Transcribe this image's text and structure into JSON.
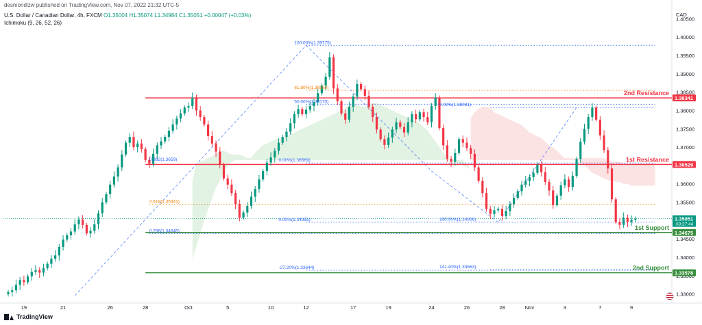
{
  "header": {
    "publisher": "desmondlzw published on TradingView.com, Nov 07, 2022 21:32 UTC-5",
    "symbol": "U.S. Dollar / Canadian Dollar, 4h, FXCM",
    "ohlc": "O1.35004 H1.35074 L1.34984 C1.35051 +0.00047 (+0.03%)",
    "indicator": "Ichimoku (9, 26, 52, 26)"
  },
  "footer": {
    "brand": "TradingView"
  },
  "chart_data": {
    "type": "candlestick",
    "currency": "CAD",
    "ylim": [
      1.3275,
      1.4075
    ],
    "yticks": [
      1.33,
      1.335,
      1.34,
      1.345,
      1.35,
      1.355,
      1.36,
      1.365,
      1.37,
      1.375,
      1.38,
      1.385,
      1.39,
      1.395,
      1.4,
      1.405
    ],
    "x_ticks": [
      {
        "i": 4,
        "label": "19"
      },
      {
        "i": 14,
        "label": "21"
      },
      {
        "i": 26,
        "label": "26"
      },
      {
        "i": 35,
        "label": "28"
      },
      {
        "i": 46,
        "label": "Oct"
      },
      {
        "i": 56,
        "label": "5"
      },
      {
        "i": 67,
        "label": "10"
      },
      {
        "i": 76,
        "label": "12"
      },
      {
        "i": 88,
        "label": "17"
      },
      {
        "i": 97,
        "label": "19"
      },
      {
        "i": 108,
        "label": "24"
      },
      {
        "i": 117,
        "label": "26"
      },
      {
        "i": 126,
        "label": "28"
      },
      {
        "i": 133,
        "label": "Nov"
      },
      {
        "i": 142,
        "label": "3"
      },
      {
        "i": 151,
        "label": "7"
      },
      {
        "i": 159,
        "label": "9"
      }
    ],
    "closes": [
      1.3305,
      1.331,
      1.3325,
      1.3338,
      1.3332,
      1.3348,
      1.336,
      1.3365,
      1.3358,
      1.337,
      1.3382,
      1.3396,
      1.3405,
      1.3428,
      1.3448,
      1.346,
      1.347,
      1.349,
      1.3503,
      1.3488,
      1.3465,
      1.3472,
      1.349,
      1.352,
      1.355,
      1.3572,
      1.3598,
      1.362,
      1.3645,
      1.368,
      1.3712,
      1.3728,
      1.37,
      1.371,
      1.3695,
      1.3665,
      1.3655,
      1.3682,
      1.3705,
      1.3716,
      1.3728,
      1.3745,
      1.3762,
      1.3778,
      1.3792,
      1.3808,
      1.3812,
      1.3835,
      1.38,
      1.3782,
      1.3762,
      1.373,
      1.371,
      1.3688,
      1.3652,
      1.3615,
      1.3598,
      1.3575,
      1.3545,
      1.3508,
      1.3522,
      1.354,
      1.3565,
      1.3586,
      1.3612,
      1.3635,
      1.3658,
      1.3672,
      1.369,
      1.3712,
      1.3728,
      1.3742,
      1.3765,
      1.379,
      1.3804,
      1.379,
      1.3802,
      1.3812,
      1.3823,
      1.3847,
      1.3868,
      1.3892,
      1.3945,
      1.386,
      1.3825,
      1.3792,
      1.3775,
      1.381,
      1.3838,
      1.3872,
      1.3858,
      1.384,
      1.381,
      1.3782,
      1.3748,
      1.3722,
      1.3706,
      1.3726,
      1.3748,
      1.3768,
      1.3755,
      1.374,
      1.3768,
      1.379,
      1.3776,
      1.3795,
      1.3782,
      1.3768,
      1.3812,
      1.3835,
      1.3752,
      1.3705,
      1.3668,
      1.366,
      1.3684,
      1.3722,
      1.3712,
      1.3698,
      1.3682,
      1.3645,
      1.3608,
      1.3575,
      1.3532,
      1.3518,
      1.3528,
      1.3532,
      1.3512,
      1.3526,
      1.3545,
      1.3562,
      1.358,
      1.3598,
      1.3608,
      1.3618,
      1.363,
      1.3652,
      1.3632,
      1.3605,
      1.3582,
      1.3542,
      1.3568,
      1.3596,
      1.3612,
      1.3592,
      1.3622,
      1.3668,
      1.3715,
      1.375,
      1.3782,
      1.3808,
      1.3775,
      1.3732,
      1.3692,
      1.3642,
      1.3558,
      1.3496,
      1.3488,
      1.3508,
      1.3496,
      1.3502,
      1.3505
    ],
    "ichimoku_cloud": [
      {
        "start": 47,
        "end": 62,
        "top": [
          1.361,
          1.3655,
          1.366,
          1.3665,
          1.367,
          1.3675,
          1.368,
          1.369,
          1.369,
          1.3685,
          1.368,
          1.368,
          1.368,
          1.3675,
          1.367,
          1.367
        ],
        "bottom": [
          1.3395,
          1.343,
          1.3465,
          1.35,
          1.353,
          1.356,
          1.359,
          1.361,
          1.363,
          1.365,
          1.366,
          1.3665,
          1.3665,
          1.3665,
          1.3665,
          1.3665
        ],
        "color": "#4caf50"
      },
      {
        "start": 62,
        "end": 118,
        "top": [
          1.367,
          1.3685,
          1.3695,
          1.3705,
          1.371,
          1.3715,
          1.372,
          1.3725,
          1.3725,
          1.373,
          1.3735,
          1.374,
          1.3745,
          1.375,
          1.3755,
          1.376,
          1.3765,
          1.377,
          1.3775,
          1.378,
          1.3785,
          1.379,
          1.3795,
          1.38,
          1.3805,
          1.3815,
          1.382,
          1.3815,
          1.381,
          1.381,
          1.3815,
          1.382,
          1.382,
          1.3815,
          1.381,
          1.3805,
          1.38,
          1.3795,
          1.379,
          1.3785,
          1.378,
          1.3775,
          1.377,
          1.3765,
          1.3755,
          1.3745,
          1.373,
          1.3715,
          1.37,
          1.3685,
          1.367,
          1.3665,
          1.366,
          1.3655,
          1.365,
          1.3645,
          1.364
        ],
        "bottom": [
          1.3665,
          1.3665,
          1.3665,
          1.3665,
          1.3665,
          1.3665,
          1.3665,
          1.3665,
          1.3665,
          1.3665,
          1.3665,
          1.3665,
          1.3665,
          1.3665,
          1.3665,
          1.3665,
          1.3665,
          1.3665,
          1.3665,
          1.3665,
          1.3665,
          1.3665,
          1.3665,
          1.3665,
          1.3665,
          1.3665,
          1.3665,
          1.3665,
          1.3665,
          1.3665,
          1.3665,
          1.3665,
          1.3665,
          1.3665,
          1.3665,
          1.3665,
          1.3665,
          1.3665,
          1.3665,
          1.3665,
          1.3665,
          1.3665,
          1.3665,
          1.3665,
          1.3665,
          1.3665,
          1.3665,
          1.3665,
          1.3665,
          1.3665,
          1.3665,
          1.3665,
          1.3665,
          1.3665,
          1.3665,
          1.3655,
          1.364
        ],
        "color": "#4caf50"
      },
      {
        "start": 118,
        "end": 165,
        "top": [
          1.378,
          1.3795,
          1.3805,
          1.381,
          1.381,
          1.3805,
          1.3795,
          1.379,
          1.3785,
          1.378,
          1.3775,
          1.377,
          1.3765,
          1.376,
          1.375,
          1.374,
          1.3735,
          1.373,
          1.3725,
          1.3715,
          1.3705,
          1.37,
          1.369,
          1.368,
          1.367,
          1.367,
          1.367,
          1.367,
          1.367,
          1.367,
          1.367,
          1.367,
          1.367,
          1.367,
          1.367,
          1.3665,
          1.366,
          1.366,
          1.366,
          1.3655,
          1.3655,
          1.3655,
          1.3655,
          1.3655,
          1.3655,
          1.3655,
          1.3655,
          1.3655
        ],
        "bottom": [
          1.3665,
          1.3665,
          1.3665,
          1.3665,
          1.3665,
          1.3665,
          1.3665,
          1.3665,
          1.3665,
          1.3665,
          1.3665,
          1.3665,
          1.3665,
          1.3665,
          1.3665,
          1.3665,
          1.3665,
          1.3665,
          1.3665,
          1.3665,
          1.3665,
          1.3665,
          1.3665,
          1.3665,
          1.3665,
          1.3665,
          1.3665,
          1.3665,
          1.366,
          1.365,
          1.364,
          1.363,
          1.3625,
          1.362,
          1.3615,
          1.361,
          1.361,
          1.3605,
          1.3605,
          1.36,
          1.36,
          1.3595,
          1.3595,
          1.3595,
          1.3595,
          1.3595,
          1.3595,
          1.3595
        ],
        "color": "#ef5350"
      }
    ],
    "horizontal_levels": [
      {
        "price": 1.38341,
        "label": "2nd Resistance",
        "color": "#f23645",
        "width": 1.5
      },
      {
        "price": 1.36529,
        "label": "1st Resistance",
        "color": "#f23645",
        "width": 1.5
      },
      {
        "price": 1.34675,
        "label": "1st Support",
        "color": "#388e3c",
        "width": 1.5
      },
      {
        "price": 1.33578,
        "label": "2nd Support",
        "color": "#388e3c",
        "width": 1.5
      }
    ],
    "price_tags": [
      {
        "price": 1.38341,
        "text": "1.38341",
        "color": "#f23645"
      },
      {
        "price": 1.36529,
        "text": "1.36529",
        "color": "#f23645"
      },
      {
        "price": 1.35051,
        "text": "1.35051",
        "sub": "03:27:44",
        "color": "#089981"
      },
      {
        "price": 1.34675,
        "text": "1.34675",
        "color": "#388e3c"
      },
      {
        "price": 1.33578,
        "text": "1.33578",
        "color": "#388e3c"
      }
    ],
    "fib_labels": [
      {
        "i": 73,
        "price": 1.39775,
        "text": "100.00%(1.39775)",
        "color": "#2962ff"
      },
      {
        "i": 73,
        "price": 1.3855,
        "text": "61.80%(1.38550)",
        "color": "#f57c00"
      },
      {
        "i": 73,
        "price": 1.3817,
        "text": "50.00%(1.38170)",
        "color": "#2962ff"
      },
      {
        "i": 36,
        "price": 1.3659,
        "text": "0.382(1.3659)",
        "color": "#2962ff"
      },
      {
        "i": 36,
        "price": 1.35441,
        "text": "0.618(1.35441)",
        "color": "#f57c00"
      },
      {
        "i": 36,
        "price": 1.34645,
        "text": "0.786(1.34645)",
        "color": "#2962ff"
      },
      {
        "i": 69,
        "price": 1.36569,
        "text": "0.00%(1.36569)",
        "color": "#2962ff"
      },
      {
        "i": 69,
        "price": 1.34955,
        "text": "0.00%(1.34955)",
        "color": "#2962ff"
      },
      {
        "i": 69,
        "price": 1.33644,
        "text": "-27.20%(1.33644)",
        "color": "#2962ff"
      },
      {
        "i": 110,
        "price": 1.38081,
        "text": "0.00%(1.38081)",
        "color": "#2962ff"
      },
      {
        "i": 110,
        "price": 1.34956,
        "text": "100.00%(1.34956)",
        "color": "#2962ff"
      },
      {
        "i": 110,
        "price": 1.33663,
        "text": "141.40%(1.33663)",
        "color": "#2962ff"
      }
    ],
    "fib_lines": [
      {
        "price": 1.39775,
        "from": 76,
        "to": 165,
        "color": "#2962ff"
      },
      {
        "price": 1.3855,
        "from": 76,
        "to": 165,
        "color": "#f57c00"
      },
      {
        "price": 1.3817,
        "from": 76,
        "to": 165,
        "color": "#2962ff"
      },
      {
        "price": 1.38081,
        "from": 123,
        "to": 165,
        "color": "#2962ff"
      },
      {
        "price": 1.36569,
        "from": 76,
        "to": 165,
        "color": "#2962ff"
      },
      {
        "price": 1.35441,
        "from": 36,
        "to": 165,
        "color": "#f57c00"
      },
      {
        "price": 1.34955,
        "from": 76,
        "to": 165,
        "color": "#2962ff"
      },
      {
        "price": 1.34645,
        "from": 36,
        "to": 165,
        "color": "#2962ff"
      },
      {
        "price": 1.33644,
        "from": 76,
        "to": 165,
        "color": "#2962ff"
      },
      {
        "price": 1.33663,
        "from": 123,
        "to": 165,
        "color": "#2962ff"
      }
    ],
    "trend_lines": [
      {
        "points": [
          [
            17,
            1.3295
          ],
          [
            76,
            1.39775
          ]
        ],
        "color": "#2962ff"
      },
      {
        "points": [
          [
            76,
            1.39775
          ],
          [
            108,
            1.3635
          ],
          [
            125,
            1.3495
          ],
          [
            145,
            1.3808
          ]
        ],
        "color": "#2962ff"
      }
    ],
    "current_price": 1.35051
  }
}
